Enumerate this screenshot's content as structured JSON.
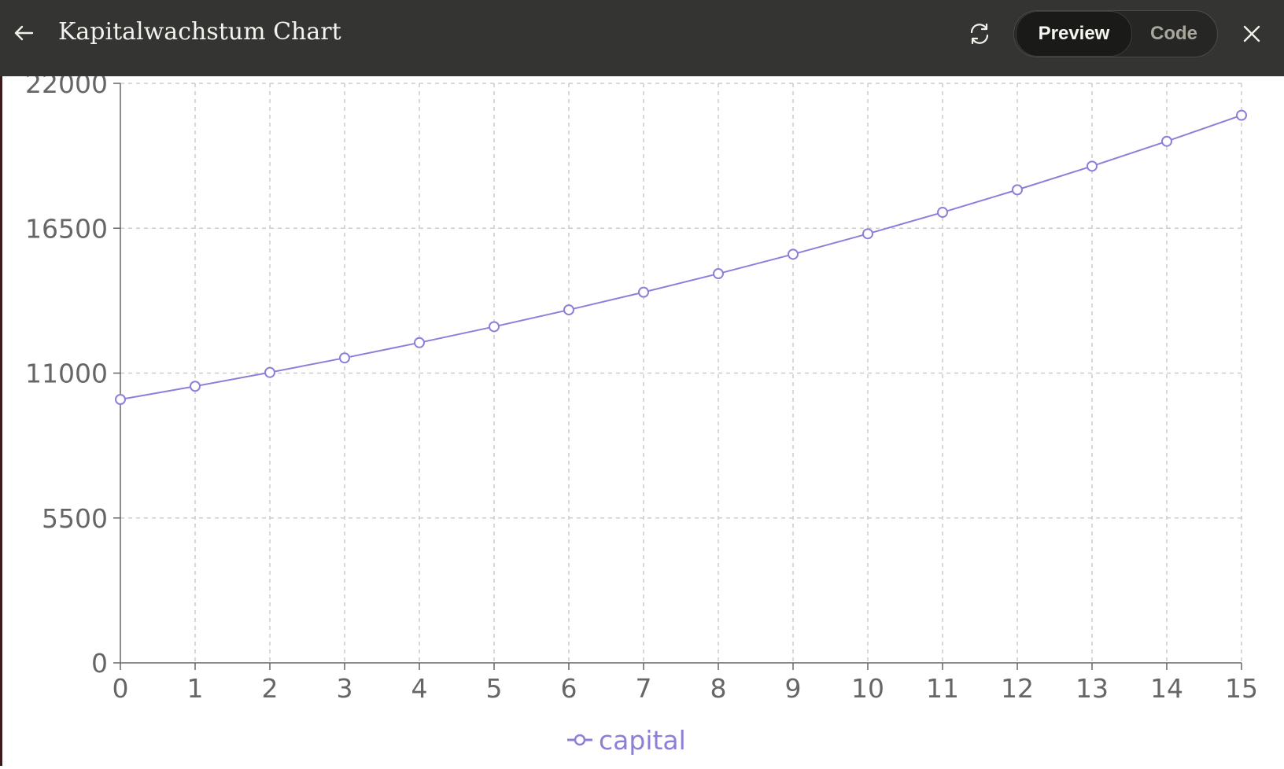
{
  "header": {
    "title": "Kapitalwachstum Chart",
    "back_icon": "arrow-left-icon",
    "refresh_icon": "refresh-icon",
    "close_icon": "close-icon",
    "tabs": [
      {
        "label": "Preview",
        "active": true
      },
      {
        "label": "Code",
        "active": false
      }
    ]
  },
  "chart_data": {
    "type": "line",
    "x": [
      0,
      1,
      2,
      3,
      4,
      5,
      6,
      7,
      8,
      9,
      10,
      11,
      12,
      13,
      14,
      15
    ],
    "series": [
      {
        "name": "capital",
        "color": "#8b80d9",
        "values": [
          10000,
          10500,
          11025,
          11576,
          12155,
          12763,
          13401,
          14071,
          14775,
          15513,
          16289,
          17103,
          17959,
          18856,
          19799,
          20789
        ]
      }
    ],
    "yticks": [
      0,
      5500,
      11000,
      16500,
      22000
    ],
    "xticks": [
      0,
      1,
      2,
      3,
      4,
      5,
      6,
      7,
      8,
      9,
      10,
      11,
      12,
      13,
      14,
      15
    ],
    "xlim": [
      0,
      15
    ],
    "ylim": [
      0,
      22000
    ],
    "grid": true,
    "legend": "bottom-center"
  }
}
